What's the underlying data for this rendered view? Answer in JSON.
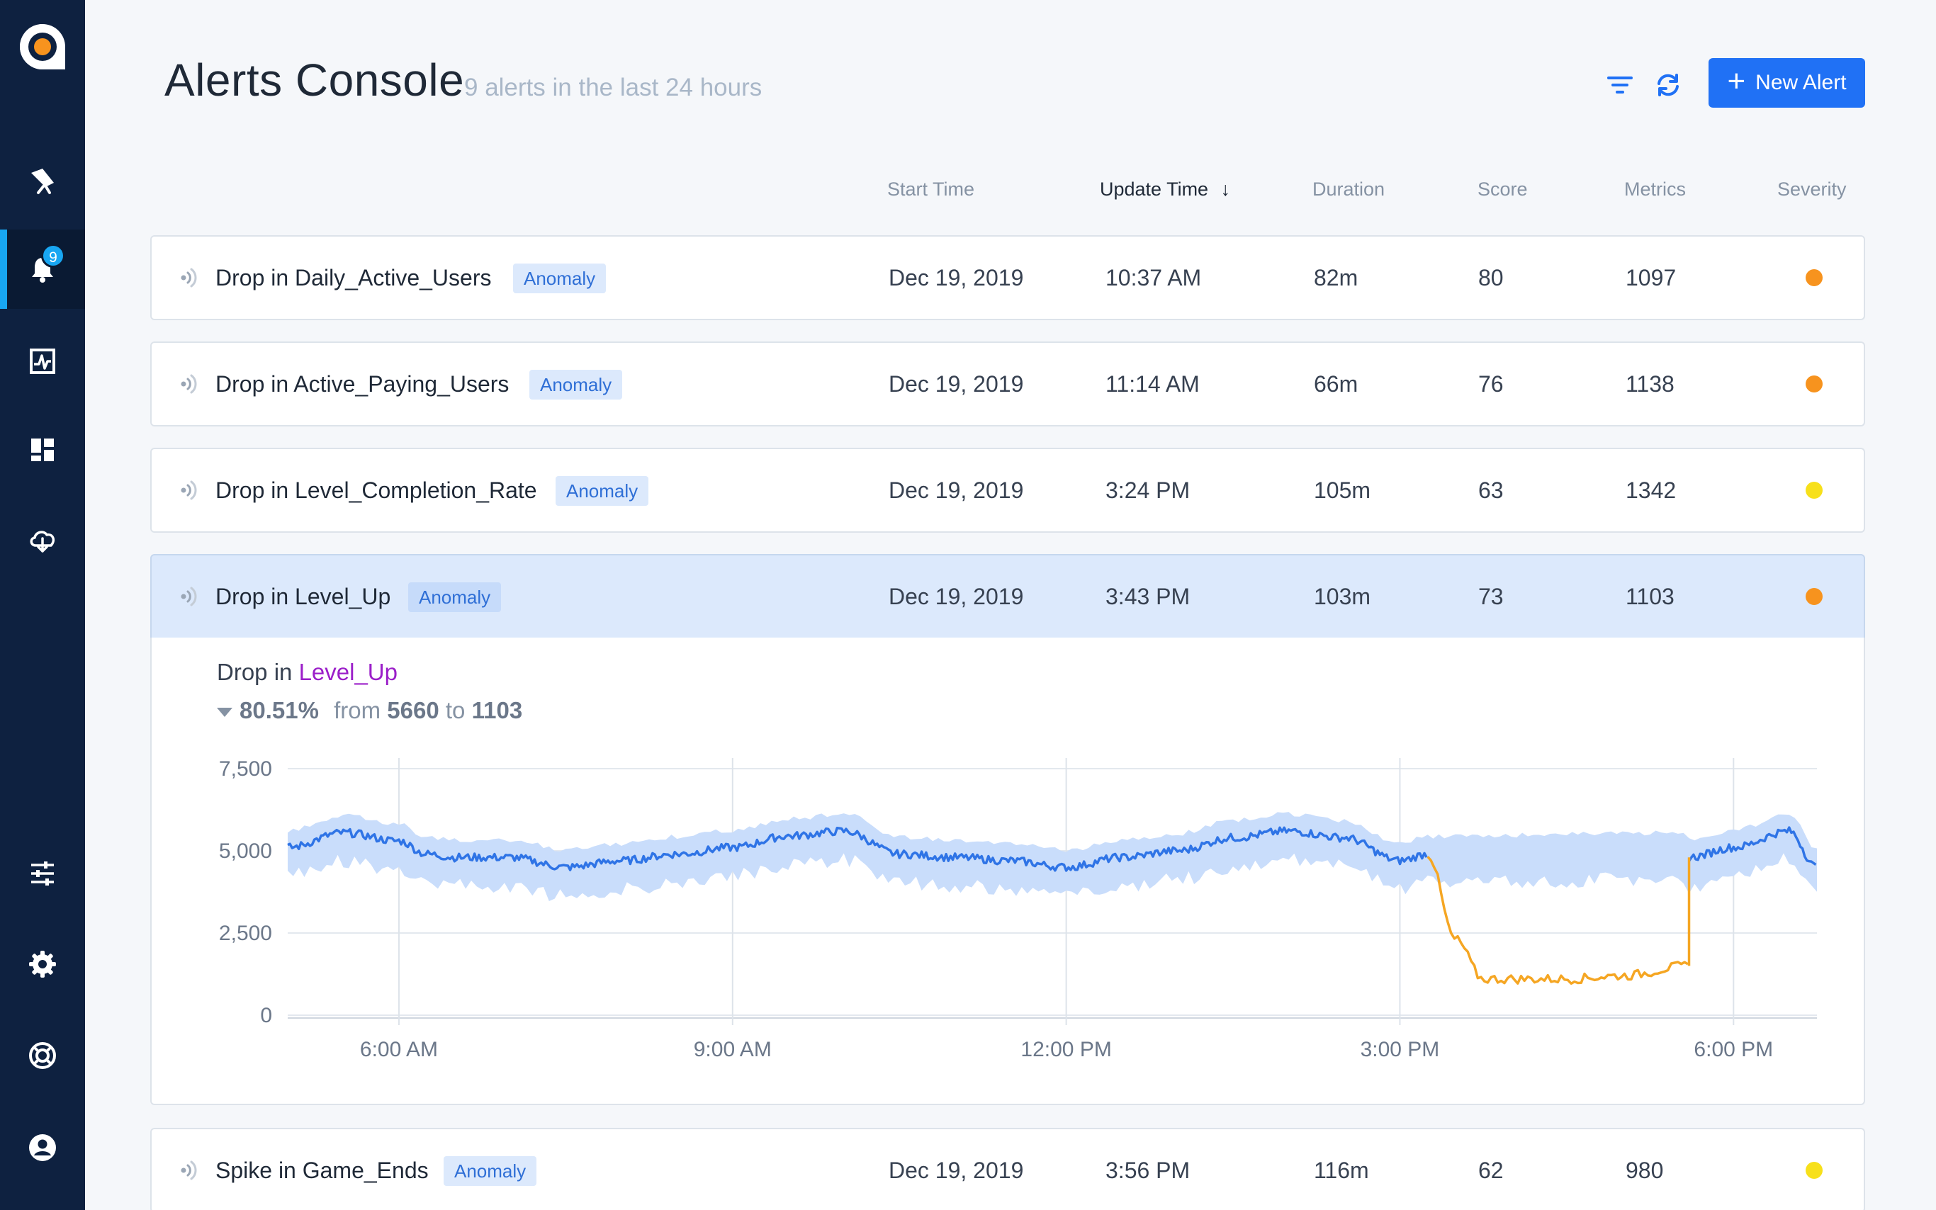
{
  "app": {
    "logo_icon": "anodot-logo-icon"
  },
  "sidebar": {
    "items": [
      {
        "name": "explore",
        "icon": "telescope-icon"
      },
      {
        "name": "alerts",
        "icon": "bell-icon",
        "badge": "9",
        "active": true
      },
      {
        "name": "anomalies",
        "icon": "activity-chart-icon"
      },
      {
        "name": "dashboards",
        "icon": "dashboard-icon"
      },
      {
        "name": "data-collection",
        "icon": "cloud-upload-icon"
      },
      {
        "name": "settings-sliders",
        "icon": "sliders-icon"
      },
      {
        "name": "settings",
        "icon": "gear-icon"
      },
      {
        "name": "help",
        "icon": "lifebuoy-icon"
      },
      {
        "name": "profile",
        "icon": "user-circle-icon"
      }
    ]
  },
  "header": {
    "title": "Alerts Console",
    "subtitle": "9 alerts in the last 24 hours",
    "new_alert_label": "New Alert",
    "new_alert_plus": "+"
  },
  "columns": {
    "start_time": "Start Time",
    "update_time": "Update Time",
    "update_time_sort": "↓",
    "duration": "Duration",
    "score": "Score",
    "metrics": "Metrics",
    "severity": "Severity"
  },
  "alerts": [
    {
      "title": "Drop in Daily_Active_Users",
      "tag": "Anomaly",
      "start": "Dec 19, 2019",
      "update": "10:37 AM",
      "duration": "82m",
      "score": "80",
      "metrics": "1097",
      "severity_color": "#f7931e"
    },
    {
      "title": "Drop in Active_Paying_Users",
      "tag": "Anomaly",
      "start": "Dec 19, 2019",
      "update": "11:14 AM",
      "duration": "66m",
      "score": "76",
      "metrics": "1138",
      "severity_color": "#f7931e"
    },
    {
      "title": "Drop in Level_Completion_Rate",
      "tag": "Anomaly",
      "start": "Dec 19, 2019",
      "update": "3:24 PM",
      "duration": "105m",
      "score": "63",
      "metrics": "1342",
      "severity_color": "#f7e01b"
    },
    {
      "title": "Drop in Level_Up",
      "tag": "Anomaly",
      "start": "Dec 19, 2019",
      "update": "3:43 PM",
      "duration": "103m",
      "score": "73",
      "metrics": "1103",
      "severity_color": "#f7931e",
      "expanded": true
    },
    {
      "title": "Spike in Game_Ends",
      "tag": "Anomaly",
      "start": "Dec 19, 2019",
      "update": "3:56 PM",
      "duration": "116m",
      "score": "62",
      "metrics": "980",
      "severity_color": "#f7e01b"
    }
  ],
  "detail": {
    "title_prefix": "Drop in ",
    "metric": "Level_Up",
    "change_pct": "80.51%",
    "from_label": "from",
    "from_value": "5660",
    "to_label": "to",
    "to_value": "1103"
  },
  "chart_data": {
    "type": "line",
    "title": "",
    "xlabel": "",
    "ylabel": "",
    "ylim": [
      0,
      7500
    ],
    "y_ticks": [
      "0",
      "2,500",
      "5,000",
      "7,500"
    ],
    "x_ticks": [
      "6:00 AM",
      "9:00 AM",
      "12:00 PM",
      "3:00 PM",
      "6:00 PM"
    ],
    "x_range_hours": [
      5.0,
      18.75
    ],
    "grid": true,
    "colors": {
      "normal": "#2f74e6",
      "anomaly": "#f5a623",
      "band": "#c9ddfb"
    },
    "series": [
      {
        "x_hours": [
          5.0,
          5.5,
          6.0,
          6.25,
          6.5,
          7.0,
          7.5,
          8.0,
          8.5,
          9.0,
          9.5,
          10.0,
          10.5,
          11.0,
          11.5,
          12.0,
          12.5,
          13.0,
          13.5,
          14.0,
          14.5,
          15.0,
          15.25
        ],
        "values": [
          5100,
          5550,
          5300,
          4900,
          4800,
          4800,
          4500,
          4700,
          4900,
          5100,
          5450,
          5600,
          4900,
          4800,
          4700,
          4500,
          4800,
          5000,
          5400,
          5600,
          5400,
          4700,
          4900
        ]
      },
      {
        "x_hours": [
          15.25,
          15.5,
          15.75,
          16.0,
          16.5,
          17.0,
          17.6
        ],
        "values": [
          4900,
          2300,
          1100,
          1100,
          1100,
          1200,
          1500
        ]
      },
      {
        "x_hours": [
          17.6,
          18.0,
          18.5,
          18.75
        ],
        "values": [
          4800,
          5100,
          5600,
          4500
        ]
      }
    ]
  }
}
